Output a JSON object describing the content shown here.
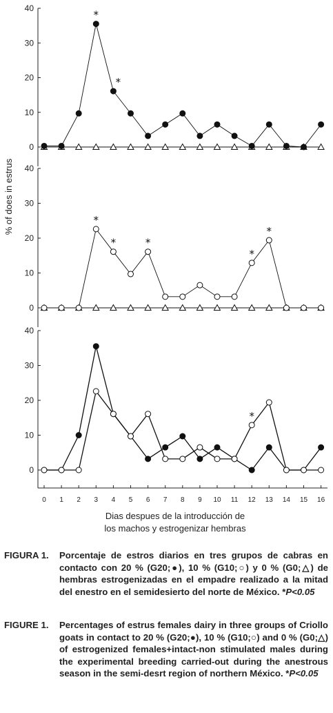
{
  "chart_data": [
    {
      "type": "line",
      "ylim": [
        0,
        40
      ],
      "yticks": [
        0,
        10,
        20,
        30,
        40
      ],
      "x": [
        0,
        1,
        2,
        3,
        4,
        5,
        6,
        7,
        8,
        9,
        10,
        11,
        12,
        13,
        14,
        15,
        16
      ],
      "series": [
        {
          "marker": "filled-circle",
          "values": [
            0.3,
            0.3,
            9.7,
            35.5,
            16.1,
            9.7,
            3.2,
            6.5,
            9.7,
            3.2,
            6.5,
            3.2,
            0.3,
            6.5,
            0.3,
            0,
            6.5
          ]
        },
        {
          "marker": "open-triangle",
          "values": [
            0,
            0,
            0,
            0,
            0,
            0,
            0,
            0,
            0,
            0,
            0,
            0,
            0,
            0,
            0,
            0,
            0
          ]
        }
      ],
      "significance_marks": [
        {
          "x": 3,
          "label": "*"
        },
        {
          "x": 4,
          "label": "*"
        }
      ]
    },
    {
      "type": "line",
      "ylim": [
        0,
        40
      ],
      "yticks": [
        0,
        10,
        20,
        30,
        40
      ],
      "x": [
        0,
        1,
        2,
        3,
        4,
        5,
        6,
        7,
        8,
        9,
        10,
        11,
        12,
        13,
        14,
        15,
        16
      ],
      "series": [
        {
          "marker": "open-circle",
          "values": [
            0,
            0,
            0,
            22.6,
            16.1,
            9.7,
            16.1,
            3.2,
            3.2,
            6.5,
            3.2,
            3.2,
            12.9,
            19.4,
            0,
            0,
            0
          ]
        },
        {
          "marker": "open-triangle",
          "values": [
            0,
            0,
            0,
            0,
            0,
            0,
            0,
            0,
            0,
            0,
            0,
            0,
            0,
            0,
            0,
            0,
            0
          ]
        }
      ],
      "significance_marks": [
        {
          "x": 3,
          "label": "*"
        },
        {
          "x": 4,
          "label": "*"
        },
        {
          "x": 6,
          "label": "*"
        },
        {
          "x": 12,
          "label": "*"
        },
        {
          "x": 13,
          "label": "*"
        }
      ]
    },
    {
      "type": "line",
      "ylim": [
        0,
        40
      ],
      "yticks": [
        0,
        10,
        20,
        30,
        40
      ],
      "x": [
        0,
        1,
        2,
        3,
        4,
        5,
        6,
        7,
        8,
        9,
        10,
        11,
        12,
        13,
        14,
        15,
        16
      ],
      "xticks": [
        "0",
        "1",
        "2",
        "3",
        "4",
        "5",
        "6",
        "7",
        "8",
        "9",
        "10",
        "11",
        "12",
        "13",
        "14",
        "15",
        "16"
      ],
      "series": [
        {
          "marker": "filled-circle",
          "values": [
            0,
            0,
            10,
            35.5,
            16.1,
            9.7,
            3.2,
            6.5,
            9.7,
            3.2,
            6.5,
            3.2,
            0,
            6.5,
            0,
            0,
            6.5
          ]
        },
        {
          "marker": "open-circle",
          "values": [
            0,
            0,
            0,
            22.6,
            16.1,
            9.7,
            16.1,
            3.2,
            3.2,
            6.5,
            3.2,
            3.2,
            12.9,
            19.4,
            0,
            0,
            0
          ]
        }
      ],
      "significance_marks": [
        {
          "x": 12,
          "label": "*"
        }
      ]
    }
  ],
  "ylabel": "% of does in estrus",
  "xlabel_line1": "Dias despues de la introducción de",
  "xlabel_line2": "los machos y estrogenizar hembras",
  "caption_es": {
    "lead": "FIGURA 1.",
    "text": "Porcentaje de estros diarios en tres grupos de cabras en contacto con 20 % (G20;●), 10 % (G10;○) y 0 % (G0;△) de hembras estrogenizadas en el empadre realizado a la mitad del enestro en el semidesierto del norte de México. *",
    "p": "P<0.05"
  },
  "caption_en": {
    "lead": "FIGURE 1.",
    "text": "Percentages of estrus females dairy in three groups of Criollo goats in contact to 20 % (G20;●), 10 % (G10;○) and 0 % (G0;△) of estrogenized females+intact-non stimulated males during the experimental breeding carried-out during the anestrous season in the semi-desrt region of northern México. *",
    "p": "P<0.05"
  }
}
